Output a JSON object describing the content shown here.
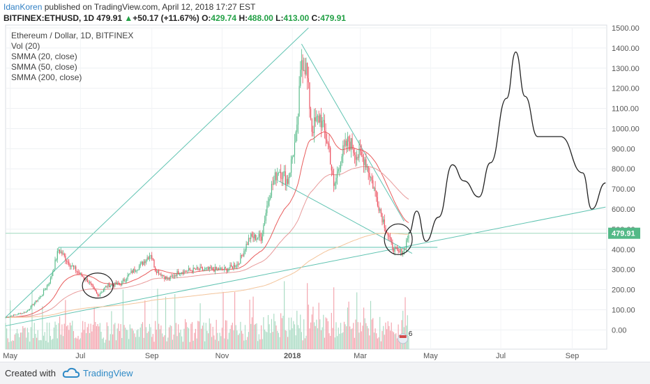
{
  "header": {
    "author": "IdanKoren",
    "published_text": "published on TradingView.com, April 12, 2018 17:27 EST",
    "symbol": "BITFINEX:ETHUSD, 1D",
    "last": "479.91",
    "change": "+50.17 (+11.67%)",
    "o_label": "O:",
    "o": "429.74",
    "h_label": "H:",
    "h": "488.00",
    "l_label": "L:",
    "l": "413.00",
    "c_label": "C:",
    "c": "479.91"
  },
  "legend": [
    "Ethereum / Dollar, 1D, BITFINEX",
    "Vol (20)",
    "SMMA (20, close)",
    "SMMA (50, close)",
    "SMMA (200, close)"
  ],
  "footer": {
    "created_with": "Created with",
    "brand": "TradingView"
  },
  "colors": {
    "up": "#53b987",
    "down": "#eb4d5c",
    "trendline": "#5fc3b1",
    "smma20": "#e85b5b",
    "smma50": "#e89a9a",
    "smma200": "#f3c49a",
    "price_tag": "#53b987",
    "drawing": "#222222"
  },
  "chart_data": {
    "type": "candlestick",
    "title": "Ethereum / Dollar, 1D, BITFINEX",
    "y_ticks": [
      "1500.00",
      "1400.00",
      "1300.00",
      "1200.00",
      "1100.00",
      "1000.00",
      "900.00",
      "800.00",
      "700.00",
      "600.00",
      "500.00",
      "400.00",
      "300.00",
      "200.00",
      "100.00",
      "0.00"
    ],
    "x_ticks": [
      "May",
      "Jul",
      "Sep",
      "Nov",
      "2018",
      "Mar",
      "May",
      "Jul",
      "Sep"
    ],
    "ylim": [
      -30,
      1500
    ],
    "last_price_label": "479.91",
    "event_badge_count": "6",
    "price_path_approx": [
      [
        "2017-04-27",
        62
      ],
      [
        "2017-05-15",
        90
      ],
      [
        "2017-05-28",
        170
      ],
      [
        "2017-06-05",
        250
      ],
      [
        "2017-06-12",
        400
      ],
      [
        "2017-06-20",
        340
      ],
      [
        "2017-06-28",
        290
      ],
      [
        "2017-07-08",
        240
      ],
      [
        "2017-07-16",
        170
      ],
      [
        "2017-07-24",
        220
      ],
      [
        "2017-08-05",
        230
      ],
      [
        "2017-08-15",
        290
      ],
      [
        "2017-08-22",
        320
      ],
      [
        "2017-08-31",
        380
      ],
      [
        "2017-09-04",
        300
      ],
      [
        "2017-09-15",
        250
      ],
      [
        "2017-09-25",
        290
      ],
      [
        "2017-10-10",
        300
      ],
      [
        "2017-10-25",
        300
      ],
      [
        "2017-11-05",
        300
      ],
      [
        "2017-11-15",
        330
      ],
      [
        "2017-11-25",
        460
      ],
      [
        "2017-12-05",
        460
      ],
      [
        "2017-12-12",
        680
      ],
      [
        "2017-12-20",
        800
      ],
      [
        "2017-12-28",
        740
      ],
      [
        "2018-01-05",
        980
      ],
      [
        "2018-01-09",
        1350
      ],
      [
        "2018-01-13",
        1300
      ],
      [
        "2018-01-18",
        1000
      ],
      [
        "2018-01-25",
        1060
      ],
      [
        "2018-02-02",
        900
      ],
      [
        "2018-02-06",
        700
      ],
      [
        "2018-02-12",
        860
      ],
      [
        "2018-02-19",
        940
      ],
      [
        "2018-02-26",
        870
      ],
      [
        "2018-03-05",
        850
      ],
      [
        "2018-03-12",
        720
      ],
      [
        "2018-03-20",
        560
      ],
      [
        "2018-03-28",
        420
      ],
      [
        "2018-04-03",
        380
      ],
      [
        "2018-04-08",
        400
      ],
      [
        "2018-04-12",
        480
      ]
    ],
    "smma": [
      {
        "name": "SMMA (20, close)"
      },
      {
        "name": "SMMA (50, close)"
      },
      {
        "name": "SMMA (200, close)"
      }
    ],
    "volume_series": {
      "name": "Vol (20)"
    },
    "projection_path_approx": [
      [
        "2018-04-12",
        480
      ],
      [
        "2018-04-19",
        590
      ],
      [
        "2018-04-27",
        440
      ],
      [
        "2018-05-08",
        560
      ],
      [
        "2018-05-20",
        820
      ],
      [
        "2018-05-30",
        740
      ],
      [
        "2018-06-12",
        660
      ],
      [
        "2018-06-22",
        830
      ],
      [
        "2018-07-06",
        1150
      ],
      [
        "2018-07-14",
        1380
      ],
      [
        "2018-07-22",
        1160
      ],
      [
        "2018-08-02",
        960
      ],
      [
        "2018-08-22",
        960
      ],
      [
        "2018-09-10",
        780
      ],
      [
        "2018-09-18",
        600
      ],
      [
        "2018-09-30",
        730
      ]
    ],
    "trendlines": [
      {
        "from": [
          "2017-04-27",
          62
        ],
        "to": [
          "2018-01-15",
          1500
        ]
      },
      {
        "from": [
          "2018-01-09",
          1420
        ],
        "to": [
          "2018-04-08",
          540
        ]
      },
      {
        "from": [
          "2017-06-12",
          410
        ],
        "to": [
          "2018-05-07",
          410
        ]
      },
      {
        "from": [
          "2017-04-27",
          20
        ],
        "to": [
          "2018-09-30",
          610
        ]
      },
      {
        "from": [
          "2017-12-20",
          740
        ],
        "to": [
          "2018-04-15",
          380
        ]
      }
    ]
  }
}
